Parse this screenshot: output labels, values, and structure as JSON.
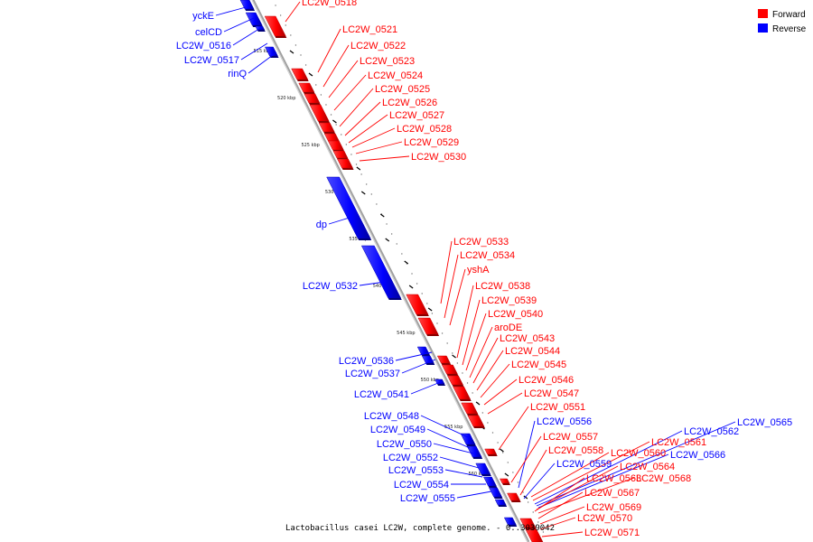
{
  "caption": "Lactobacillus casei LC2W, complete genome. - 0..3039042",
  "colors": {
    "forward": "#ff0000",
    "forward_dark": "#c40000",
    "reverse": "#0000ff",
    "reverse_dark": "#0000b4",
    "backbone": "#a0a0a0"
  },
  "legend": [
    {
      "key": "forward",
      "label": "Forward"
    },
    {
      "key": "reverse",
      "label": "Reverse"
    }
  ],
  "ticks": [
    "515 kbp",
    "520 kbp",
    "525 kbp",
    "530 kbp",
    "535 kbp",
    "540 kbp",
    "545 kbp",
    "550 kbp",
    "555 kbp",
    "560 kbp"
  ],
  "genes": [
    {
      "name": "yckE",
      "strand": "reverse"
    },
    {
      "name": "celCD",
      "strand": "reverse"
    },
    {
      "name": "LC2W_0516",
      "strand": "reverse"
    },
    {
      "name": "LC2W_0517",
      "strand": "reverse"
    },
    {
      "name": "rinQ",
      "strand": "reverse"
    },
    {
      "name": "LC2W_0518",
      "strand": "forward"
    },
    {
      "name": "LC2W_0521",
      "strand": "forward"
    },
    {
      "name": "LC2W_0522",
      "strand": "forward"
    },
    {
      "name": "LC2W_0523",
      "strand": "forward"
    },
    {
      "name": "LC2W_0524",
      "strand": "forward"
    },
    {
      "name": "LC2W_0525",
      "strand": "forward"
    },
    {
      "name": "LC2W_0526",
      "strand": "forward"
    },
    {
      "name": "LC2W_0527",
      "strand": "forward"
    },
    {
      "name": "LC2W_0528",
      "strand": "forward"
    },
    {
      "name": "LC2W_0529",
      "strand": "forward"
    },
    {
      "name": "LC2W_0530",
      "strand": "forward"
    },
    {
      "name": "dp",
      "strand": "reverse"
    },
    {
      "name": "LC2W_0532",
      "strand": "reverse"
    },
    {
      "name": "LC2W_0533",
      "strand": "forward"
    },
    {
      "name": "LC2W_0534",
      "strand": "forward"
    },
    {
      "name": "yshA",
      "strand": "forward"
    },
    {
      "name": "LC2W_0538",
      "strand": "forward"
    },
    {
      "name": "LC2W_0539",
      "strand": "forward"
    },
    {
      "name": "LC2W_0540",
      "strand": "forward"
    },
    {
      "name": "aroDE",
      "strand": "forward"
    },
    {
      "name": "LC2W_0543",
      "strand": "forward"
    },
    {
      "name": "LC2W_0544",
      "strand": "forward"
    },
    {
      "name": "LC2W_0545",
      "strand": "forward"
    },
    {
      "name": "LC2W_0546",
      "strand": "forward"
    },
    {
      "name": "LC2W_0547",
      "strand": "forward"
    },
    {
      "name": "LC2W_0551",
      "strand": "forward"
    },
    {
      "name": "LC2W_0536",
      "strand": "reverse"
    },
    {
      "name": "LC2W_0537",
      "strand": "reverse"
    },
    {
      "name": "LC2W_0541",
      "strand": "reverse"
    },
    {
      "name": "LC2W_0548",
      "strand": "reverse"
    },
    {
      "name": "LC2W_0549",
      "strand": "reverse"
    },
    {
      "name": "LC2W_0550",
      "strand": "reverse"
    },
    {
      "name": "LC2W_0552",
      "strand": "reverse"
    },
    {
      "name": "LC2W_0553",
      "strand": "reverse"
    },
    {
      "name": "LC2W_0554",
      "strand": "reverse"
    },
    {
      "name": "LC2W_0555",
      "strand": "reverse"
    },
    {
      "name": "LC2W_0556",
      "strand": "reverse"
    },
    {
      "name": "LC2W_0557",
      "strand": "forward"
    },
    {
      "name": "LC2W_0558",
      "strand": "forward"
    },
    {
      "name": "LC2W_0559",
      "strand": "reverse"
    },
    {
      "name": "LC2W_0560",
      "strand": "forward"
    },
    {
      "name": "LC2W_0561",
      "strand": "forward"
    },
    {
      "name": "LC2W_0562",
      "strand": "reverse"
    },
    {
      "name": "LC2W_0565",
      "strand": "reverse"
    },
    {
      "name": "LC2W_0566",
      "strand": "reverse"
    },
    {
      "name": "LC2W_0564",
      "strand": "forward"
    },
    {
      "name": "LC2W_0563",
      "strand": "forward"
    },
    {
      "name": "LC2W_0568",
      "strand": "forward"
    },
    {
      "name": "LC2W_0567",
      "strand": "forward"
    },
    {
      "name": "LC2W_0569",
      "strand": "forward"
    },
    {
      "name": "LC2W_0570",
      "strand": "forward"
    },
    {
      "name": "LC2W_0571",
      "strand": "forward"
    }
  ]
}
